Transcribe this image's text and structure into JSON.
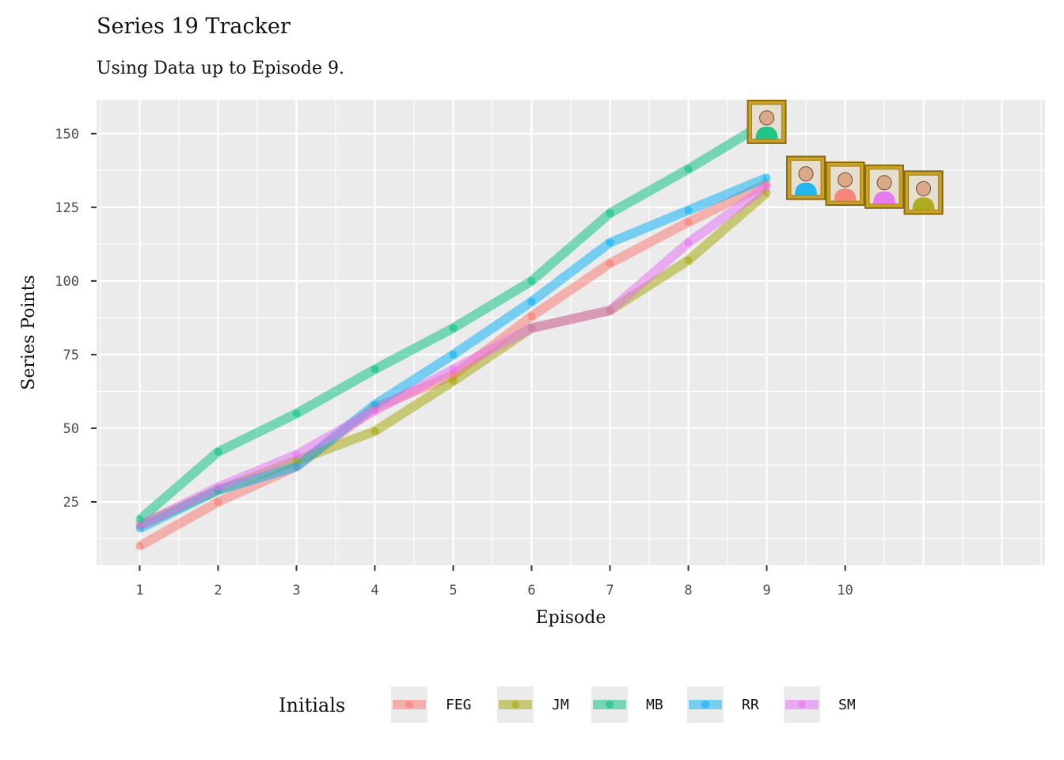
{
  "chart_data": {
    "type": "line",
    "title": "Series 19 Tracker",
    "subtitle": "Using Data up to Episode 9.",
    "xlabel": "Episode",
    "ylabel": "Series Points",
    "x_ticks": [
      1,
      2,
      3,
      4,
      5,
      6,
      7,
      8,
      9,
      10
    ],
    "y_ticks": [
      25,
      50,
      75,
      100,
      125,
      150
    ],
    "xlim": [
      0.45,
      12.55
    ],
    "ylim": [
      3.5,
      161.5
    ],
    "grid": true,
    "legend": {
      "title": "Initials",
      "placement": "bottom"
    },
    "series": [
      {
        "name": "FEG",
        "color": "#F8766D",
        "x": [
          1,
          2,
          3,
          4,
          5,
          6,
          7,
          8,
          9
        ],
        "y": [
          10,
          25,
          37,
          57,
          68,
          88,
          106,
          120,
          133
        ]
      },
      {
        "name": "JM",
        "color": "#A3A500",
        "x": [
          1,
          2,
          3,
          4,
          5,
          6,
          7,
          8,
          9
        ],
        "y": [
          17,
          29,
          39,
          49,
          66,
          84,
          90,
          107,
          130
        ]
      },
      {
        "name": "MB",
        "color": "#00BF7D",
        "x": [
          1,
          2,
          3,
          4,
          5,
          6,
          7,
          8,
          9
        ],
        "y": [
          19,
          42,
          55,
          70,
          84,
          100,
          123,
          138,
          154
        ]
      },
      {
        "name": "RR",
        "color": "#00B0F6",
        "x": [
          1,
          2,
          3,
          4,
          5,
          6,
          7,
          8,
          9
        ],
        "y": [
          16,
          29,
          37,
          58,
          75,
          93,
          113,
          124,
          135
        ]
      },
      {
        "name": "SM",
        "color": "#E76BF3",
        "x": [
          1,
          2,
          3,
          4,
          5,
          6,
          7,
          8,
          9
        ],
        "y": [
          17,
          30,
          41,
          56,
          70,
          84,
          90,
          113,
          132
        ]
      }
    ],
    "portraits": [
      {
        "name": "MB",
        "x": 9.0,
        "y": 154
      },
      {
        "name": "RR",
        "x": 9.5,
        "y": 135
      },
      {
        "name": "FEG",
        "x": 10.0,
        "y": 133
      },
      {
        "name": "SM",
        "x": 10.5,
        "y": 132
      },
      {
        "name": "JM",
        "x": 11.0,
        "y": 130
      }
    ]
  }
}
